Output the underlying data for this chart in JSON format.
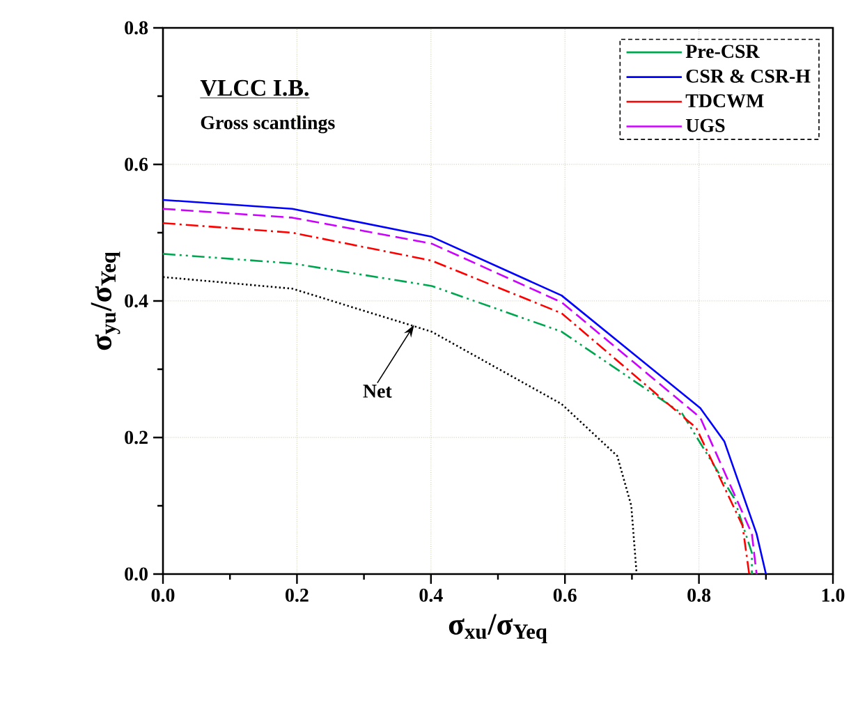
{
  "chart_data": {
    "type": "line",
    "xlabel": "σ$_{xu}$/σ$_{Yeq}$",
    "ylabel": "σ$_{yu}$/σ$_{Yeq}$",
    "annotations": [
      "VLCC I.B.",
      "Gross scantlings",
      {
        "text": "Net",
        "x": 0.375,
        "y": 0.365
      }
    ],
    "xlim": [
      0,
      1
    ],
    "ylim": [
      0,
      0.8
    ],
    "xticks": [
      {
        "value": 0,
        "label": "0.0"
      },
      0.2,
      0.4,
      0.6,
      0.8,
      {
        "value": 1,
        "label": "1.0"
      }
    ],
    "yticks": [
      {
        "value": 0,
        "label": "0.0"
      },
      0.2,
      0.4,
      0.6,
      0.8
    ],
    "grid": true,
    "legend": "top right",
    "marker": "none",
    "series": [
      {
        "name": "Pre-CSR",
        "color": "#00a550",
        "line_style": "dashdotdot",
        "x": [
          0,
          0.193,
          0.401,
          0.595,
          0.775,
          0.852,
          0.879,
          0.879
        ],
        "values": [
          0.469,
          0.455,
          0.422,
          0.355,
          0.235,
          0.112,
          0.031,
          0
        ]
      },
      {
        "name": "CSR & CSR-H",
        "color": "#0000ff",
        "line_style": "solid",
        "x": [
          0,
          0.193,
          0.401,
          0.595,
          0.802,
          0.838,
          0.886,
          0.9
        ],
        "values": [
          0.548,
          0.535,
          0.494,
          0.408,
          0.243,
          0.194,
          0.059,
          0
        ]
      },
      {
        "name": "TDCWM",
        "color": "#ff0000",
        "line_style": "dashdot",
        "x": [
          0,
          0.193,
          0.401,
          0.595,
          0.796,
          0.865,
          0.875
        ],
        "values": [
          0.514,
          0.5,
          0.459,
          0.382,
          0.214,
          0.071,
          0
        ]
      },
      {
        "name": "UGS",
        "color": "#cc00ff",
        "line_style": "dashed",
        "x": [
          0,
          0.193,
          0.401,
          0.595,
          0.802,
          0.879,
          0.886
        ],
        "values": [
          0.535,
          0.522,
          0.484,
          0.398,
          0.229,
          0.059,
          0
        ]
      },
      {
        "color": "#000000",
        "line_style": "dotted",
        "x": [
          0,
          0.193,
          0.401,
          0.595,
          0.678,
          0.699,
          0.707
        ],
        "values": [
          0.435,
          0.418,
          0.355,
          0.249,
          0.173,
          0.1,
          0
        ]
      }
    ]
  }
}
